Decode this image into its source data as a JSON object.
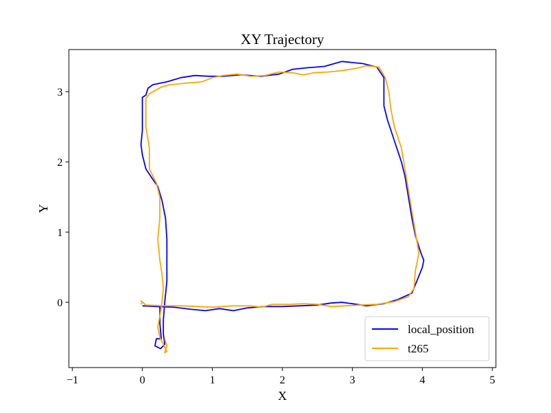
{
  "chart_data": {
    "type": "line",
    "title": "XY Trajectory",
    "xlabel": "X",
    "ylabel": "Y",
    "xlim": [
      -1.05,
      5.05
    ],
    "ylim": [
      -0.93,
      3.6
    ],
    "xticks": [
      "−1",
      "0",
      "1",
      "2",
      "3",
      "4",
      "5"
    ],
    "xtick_values": [
      -1,
      0,
      1,
      2,
      3,
      4,
      5
    ],
    "yticks": [
      "0",
      "1",
      "2",
      "3"
    ],
    "ytick_values": [
      0,
      1,
      2,
      3
    ],
    "grid": false,
    "legend_position": "bottom-right",
    "series": [
      {
        "name": "local_position",
        "color": "#0000ff",
        "points": [
          [
            0.0,
            -0.05
          ],
          [
            0.2,
            -0.06
          ],
          [
            0.45,
            -0.07
          ],
          [
            0.7,
            -0.1
          ],
          [
            0.9,
            -0.12
          ],
          [
            1.1,
            -0.09
          ],
          [
            1.3,
            -0.12
          ],
          [
            1.5,
            -0.08
          ],
          [
            1.75,
            -0.06
          ],
          [
            2.0,
            -0.06
          ],
          [
            2.25,
            -0.05
          ],
          [
            2.5,
            -0.04
          ],
          [
            2.7,
            -0.01
          ],
          [
            2.85,
            0.0
          ],
          [
            3.0,
            -0.02
          ],
          [
            3.2,
            -0.05
          ],
          [
            3.45,
            -0.02
          ],
          [
            3.65,
            0.04
          ],
          [
            3.85,
            0.13
          ],
          [
            3.92,
            0.3
          ],
          [
            4.0,
            0.5
          ],
          [
            4.02,
            0.6
          ],
          [
            3.98,
            0.7
          ],
          [
            3.9,
            0.95
          ],
          [
            3.85,
            1.2
          ],
          [
            3.8,
            1.5
          ],
          [
            3.75,
            1.8
          ],
          [
            3.7,
            2.0
          ],
          [
            3.6,
            2.3
          ],
          [
            3.5,
            2.6
          ],
          [
            3.45,
            2.8
          ],
          [
            3.45,
            3.0
          ],
          [
            3.45,
            3.2
          ],
          [
            3.35,
            3.35
          ],
          [
            3.15,
            3.4
          ],
          [
            2.85,
            3.43
          ],
          [
            2.6,
            3.36
          ],
          [
            2.35,
            3.34
          ],
          [
            2.15,
            3.32
          ],
          [
            1.95,
            3.25
          ],
          [
            1.7,
            3.22
          ],
          [
            1.4,
            3.24
          ],
          [
            1.15,
            3.22
          ],
          [
            0.95,
            3.22
          ],
          [
            0.75,
            3.23
          ],
          [
            0.55,
            3.2
          ],
          [
            0.35,
            3.14
          ],
          [
            0.15,
            3.1
          ],
          [
            0.08,
            3.05
          ],
          [
            0.05,
            2.95
          ],
          [
            0.0,
            2.92
          ],
          [
            0.0,
            2.8
          ],
          [
            0.0,
            2.6
          ],
          [
            0.0,
            2.45
          ],
          [
            -0.02,
            2.25
          ],
          [
            0.0,
            2.1
          ],
          [
            0.05,
            1.9
          ],
          [
            0.15,
            1.75
          ],
          [
            0.22,
            1.65
          ],
          [
            0.28,
            1.45
          ],
          [
            0.33,
            1.2
          ],
          [
            0.35,
            0.9
          ],
          [
            0.35,
            0.6
          ],
          [
            0.35,
            0.3
          ],
          [
            0.32,
            0.0
          ],
          [
            0.3,
            -0.25
          ],
          [
            0.3,
            -0.45
          ],
          [
            0.32,
            -0.6
          ],
          [
            0.26,
            -0.66
          ],
          [
            0.18,
            -0.62
          ],
          [
            0.2,
            -0.52
          ],
          [
            0.27,
            -0.52
          ],
          [
            0.25,
            -0.3
          ],
          [
            0.25,
            -0.1
          ],
          [
            0.25,
            -0.05
          ]
        ]
      },
      {
        "name": "t265",
        "color": "#ffa500",
        "points": [
          [
            -0.02,
            -0.03
          ],
          [
            0.0,
            0.0
          ],
          [
            -0.02,
            0.02
          ],
          [
            0.05,
            -0.04
          ],
          [
            0.3,
            -0.05
          ],
          [
            0.55,
            -0.05
          ],
          [
            0.8,
            -0.06
          ],
          [
            1.0,
            -0.07
          ],
          [
            1.3,
            -0.05
          ],
          [
            1.55,
            -0.05
          ],
          [
            1.7,
            -0.07
          ],
          [
            1.85,
            -0.03
          ],
          [
            2.1,
            -0.03
          ],
          [
            2.3,
            -0.02
          ],
          [
            2.5,
            -0.03
          ],
          [
            2.7,
            -0.06
          ],
          [
            2.9,
            -0.05
          ],
          [
            3.1,
            -0.04
          ],
          [
            3.35,
            -0.03
          ],
          [
            3.6,
            0.01
          ],
          [
            3.8,
            0.08
          ],
          [
            3.88,
            0.2
          ],
          [
            3.9,
            0.45
          ],
          [
            3.95,
            0.7
          ],
          [
            3.9,
            1.0
          ],
          [
            3.85,
            1.3
          ],
          [
            3.8,
            1.6
          ],
          [
            3.75,
            1.9
          ],
          [
            3.7,
            2.2
          ],
          [
            3.6,
            2.5
          ],
          [
            3.55,
            2.75
          ],
          [
            3.52,
            3.0
          ],
          [
            3.47,
            3.2
          ],
          [
            3.38,
            3.35
          ],
          [
            3.2,
            3.37
          ],
          [
            3.05,
            3.33
          ],
          [
            2.85,
            3.3
          ],
          [
            2.65,
            3.28
          ],
          [
            2.45,
            3.27
          ],
          [
            2.3,
            3.24
          ],
          [
            2.15,
            3.27
          ],
          [
            1.95,
            3.28
          ],
          [
            1.75,
            3.23
          ],
          [
            1.55,
            3.22
          ],
          [
            1.35,
            3.25
          ],
          [
            1.15,
            3.23
          ],
          [
            1.0,
            3.2
          ],
          [
            0.85,
            3.14
          ],
          [
            0.6,
            3.12
          ],
          [
            0.4,
            3.1
          ],
          [
            0.28,
            3.07
          ],
          [
            0.15,
            3.0
          ],
          [
            0.1,
            2.97
          ],
          [
            0.05,
            2.9
          ],
          [
            0.05,
            2.7
          ],
          [
            0.05,
            2.5
          ],
          [
            0.1,
            2.2
          ],
          [
            0.1,
            1.9
          ],
          [
            0.2,
            1.7
          ],
          [
            0.25,
            1.5
          ],
          [
            0.25,
            1.2
          ],
          [
            0.22,
            0.9
          ],
          [
            0.25,
            0.6
          ],
          [
            0.28,
            0.4
          ],
          [
            0.3,
            0.2
          ],
          [
            0.28,
            0.0
          ],
          [
            0.25,
            -0.2
          ],
          [
            0.22,
            -0.35
          ],
          [
            0.25,
            -0.5
          ],
          [
            0.3,
            -0.6
          ],
          [
            0.35,
            -0.7
          ],
          [
            0.32,
            -0.72
          ],
          [
            0.35,
            -0.62
          ],
          [
            0.32,
            -0.52
          ]
        ]
      }
    ]
  }
}
